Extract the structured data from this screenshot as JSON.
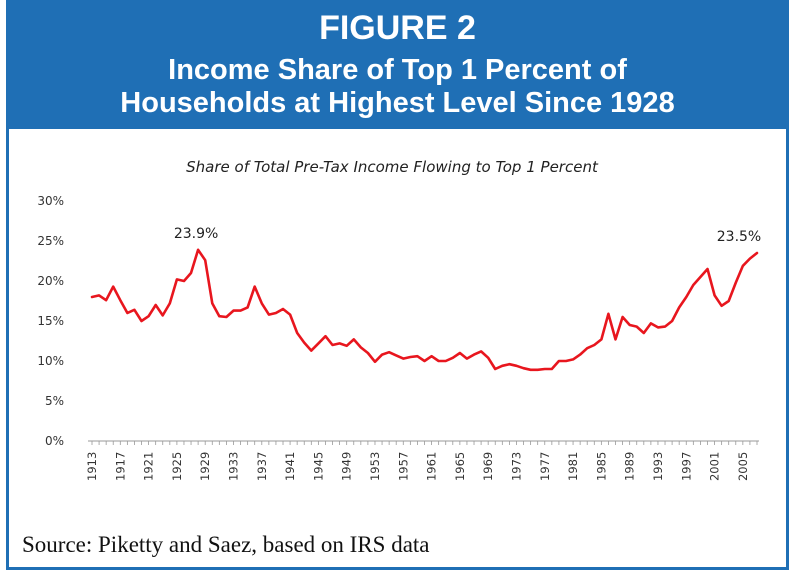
{
  "figure": {
    "label": "FIGURE 2",
    "title_line1": "Income Share of Top 1 Percent of",
    "title_line2": "Households at Highest Level Since 1928",
    "source": "Source: Piketty and Saez, based on IRS data"
  },
  "colors": {
    "header_bg": "#1f6fb5",
    "line": "#e8161e"
  },
  "chart_data": {
    "type": "line",
    "title": "Share of Total Pre-Tax Income Flowing to Top 1 Percent",
    "xlabel": "",
    "ylabel": "",
    "ylim": [
      0,
      30
    ],
    "xlim": [
      1913,
      2007
    ],
    "yticks": [
      "0%",
      "5%",
      "10%",
      "15%",
      "20%",
      "25%",
      "30%"
    ],
    "xticks": [
      "1913",
      "1917",
      "1921",
      "1925",
      "1929",
      "1933",
      "1937",
      "1941",
      "1945",
      "1949",
      "1953",
      "1957",
      "1961",
      "1965",
      "1969",
      "1973",
      "1977",
      "1981",
      "1985",
      "1989",
      "1993",
      "1997",
      "2001",
      "2005"
    ],
    "grid": false,
    "annotations": [
      {
        "text": "23.9%",
        "x": 1928,
        "y": 23.9
      },
      {
        "text": "23.5%",
        "x": 2007,
        "y": 23.5
      }
    ],
    "series": [
      {
        "x": [
          1913,
          1914,
          1915,
          1916,
          1917,
          1918,
          1919,
          1920,
          1921,
          1922,
          1923,
          1924,
          1925,
          1926,
          1927,
          1928,
          1929,
          1930,
          1931,
          1932,
          1933,
          1934,
          1935,
          1936,
          1937,
          1938,
          1939,
          1940,
          1941,
          1942,
          1943,
          1944,
          1945,
          1946,
          1947,
          1948,
          1949,
          1950,
          1951,
          1952,
          1953,
          1954,
          1955,
          1956,
          1957,
          1958,
          1959,
          1960,
          1961,
          1962,
          1963,
          1964,
          1965,
          1966,
          1967,
          1968,
          1969,
          1970,
          1971,
          1972,
          1973,
          1974,
          1975,
          1976,
          1977,
          1978,
          1979,
          1980,
          1981,
          1982,
          1983,
          1984,
          1985,
          1986,
          1987,
          1988,
          1989,
          1990,
          1991,
          1992,
          1993,
          1994,
          1995,
          1996,
          1997,
          1998,
          1999,
          2000,
          2001,
          2002,
          2003,
          2004,
          2005,
          2006,
          2007
        ],
        "values": [
          18.0,
          18.2,
          17.6,
          19.3,
          17.6,
          16.0,
          16.4,
          15.0,
          15.6,
          17.0,
          15.7,
          17.2,
          20.2,
          20.0,
          21.0,
          23.9,
          22.6,
          17.2,
          15.6,
          15.5,
          16.3,
          16.3,
          16.7,
          19.3,
          17.2,
          15.8,
          16.0,
          16.5,
          15.8,
          13.5,
          12.3,
          11.3,
          12.2,
          13.1,
          12.0,
          12.2,
          11.9,
          12.7,
          11.7,
          11.0,
          9.9,
          10.8,
          11.1,
          10.7,
          10.3,
          10.5,
          10.6,
          10.0,
          10.6,
          10.0,
          10.0,
          10.4,
          11.0,
          10.3,
          10.8,
          11.2,
          10.4,
          9.0,
          9.4,
          9.6,
          9.4,
          9.1,
          8.9,
          8.9,
          9.0,
          9.0,
          10.0,
          10.0,
          10.2,
          10.8,
          11.6,
          12.0,
          12.7,
          15.9,
          12.7,
          15.5,
          14.5,
          14.3,
          13.5,
          14.7,
          14.2,
          14.3,
          15.0,
          16.7,
          18.0,
          19.5,
          20.5,
          21.5,
          18.2,
          16.9,
          17.5,
          19.8,
          21.9,
          22.8,
          23.5
        ]
      }
    ]
  }
}
